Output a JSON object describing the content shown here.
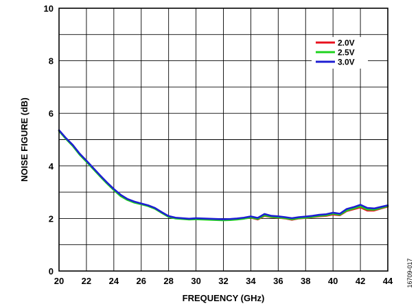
{
  "chart_data": {
    "type": "line",
    "xlabel": "FREQUENCY (GHz)",
    "ylabel": "NOISE FIGURE (dB)",
    "xlim": [
      20,
      44
    ],
    "ylim": [
      0,
      10
    ],
    "x_ticks": [
      20,
      22,
      24,
      26,
      28,
      30,
      32,
      34,
      36,
      38,
      40,
      42,
      44
    ],
    "y_ticks": [
      0,
      2,
      4,
      6,
      8,
      10
    ],
    "grid": true,
    "legend_position": "top-right",
    "series": [
      {
        "name": "2.0V",
        "color": "#e8101e",
        "x": [
          20,
          20.5,
          21,
          21.5,
          22,
          22.5,
          23,
          23.5,
          24,
          24.5,
          25,
          25.5,
          26,
          26.5,
          27,
          27.5,
          28,
          28.5,
          29,
          29.5,
          30,
          30.5,
          31,
          31.5,
          32,
          32.5,
          33,
          33.5,
          34,
          34.5,
          35,
          35.5,
          36,
          36.5,
          37,
          37.5,
          38,
          38.5,
          39,
          39.5,
          40,
          40.5,
          41,
          41.5,
          42,
          42.5,
          43,
          43.5,
          44
        ],
        "y": [
          5.35,
          5.05,
          4.78,
          4.45,
          4.18,
          3.9,
          3.62,
          3.35,
          3.1,
          2.88,
          2.72,
          2.62,
          2.55,
          2.48,
          2.38,
          2.22,
          2.07,
          2.01,
          1.99,
          1.97,
          1.98,
          1.97,
          1.96,
          1.95,
          1.94,
          1.95,
          1.97,
          2.0,
          2.03,
          1.96,
          2.1,
          2.05,
          2.03,
          2.0,
          1.95,
          2.0,
          2.02,
          2.05,
          2.08,
          2.1,
          2.15,
          2.12,
          2.28,
          2.35,
          2.42,
          2.3,
          2.3,
          2.38,
          2.45
        ]
      },
      {
        "name": "2.5V",
        "color": "#1ed21e",
        "x": [
          20,
          20.5,
          21,
          21.5,
          22,
          22.5,
          23,
          23.5,
          24,
          24.5,
          25,
          25.5,
          26,
          26.5,
          27,
          27.5,
          28,
          28.5,
          29,
          29.5,
          30,
          30.5,
          31,
          31.5,
          32,
          32.5,
          33,
          33.5,
          34,
          34.5,
          35,
          35.5,
          36,
          36.5,
          37,
          37.5,
          38,
          38.5,
          39,
          39.5,
          40,
          40.5,
          41,
          41.5,
          42,
          42.5,
          43,
          43.5,
          44
        ],
        "y": [
          5.33,
          5.03,
          4.76,
          4.43,
          4.16,
          3.88,
          3.6,
          3.33,
          3.08,
          2.85,
          2.7,
          2.6,
          2.54,
          2.47,
          2.37,
          2.21,
          2.06,
          2.0,
          1.98,
          1.96,
          1.97,
          1.96,
          1.95,
          1.94,
          1.93,
          1.94,
          1.96,
          1.99,
          2.04,
          1.98,
          2.12,
          2.06,
          2.04,
          2.01,
          1.97,
          2.01,
          2.03,
          2.06,
          2.1,
          2.12,
          2.18,
          2.14,
          2.3,
          2.38,
          2.46,
          2.34,
          2.33,
          2.4,
          2.47
        ]
      },
      {
        "name": "3.0V",
        "color": "#1e1ed2",
        "x": [
          20,
          20.5,
          21,
          21.5,
          22,
          22.5,
          23,
          23.5,
          24,
          24.5,
          25,
          25.5,
          26,
          26.5,
          27,
          27.5,
          28,
          28.5,
          29,
          29.5,
          30,
          30.5,
          31,
          31.5,
          32,
          32.5,
          33,
          33.5,
          34,
          34.5,
          35,
          35.5,
          36,
          36.5,
          37,
          37.5,
          38,
          38.5,
          39,
          39.5,
          40,
          40.5,
          41,
          41.5,
          42,
          42.5,
          43,
          43.5,
          44
        ],
        "y": [
          5.36,
          5.06,
          4.8,
          4.47,
          4.2,
          3.92,
          3.64,
          3.37,
          3.12,
          2.9,
          2.74,
          2.64,
          2.57,
          2.5,
          2.4,
          2.24,
          2.09,
          2.03,
          2.01,
          1.99,
          2.01,
          2.0,
          1.99,
          1.98,
          1.97,
          1.98,
          2.0,
          2.03,
          2.08,
          2.02,
          2.17,
          2.1,
          2.08,
          2.05,
          2.01,
          2.05,
          2.07,
          2.1,
          2.14,
          2.16,
          2.22,
          2.18,
          2.36,
          2.43,
          2.52,
          2.4,
          2.38,
          2.44,
          2.5
        ]
      }
    ]
  },
  "figure_id": "16709-017"
}
